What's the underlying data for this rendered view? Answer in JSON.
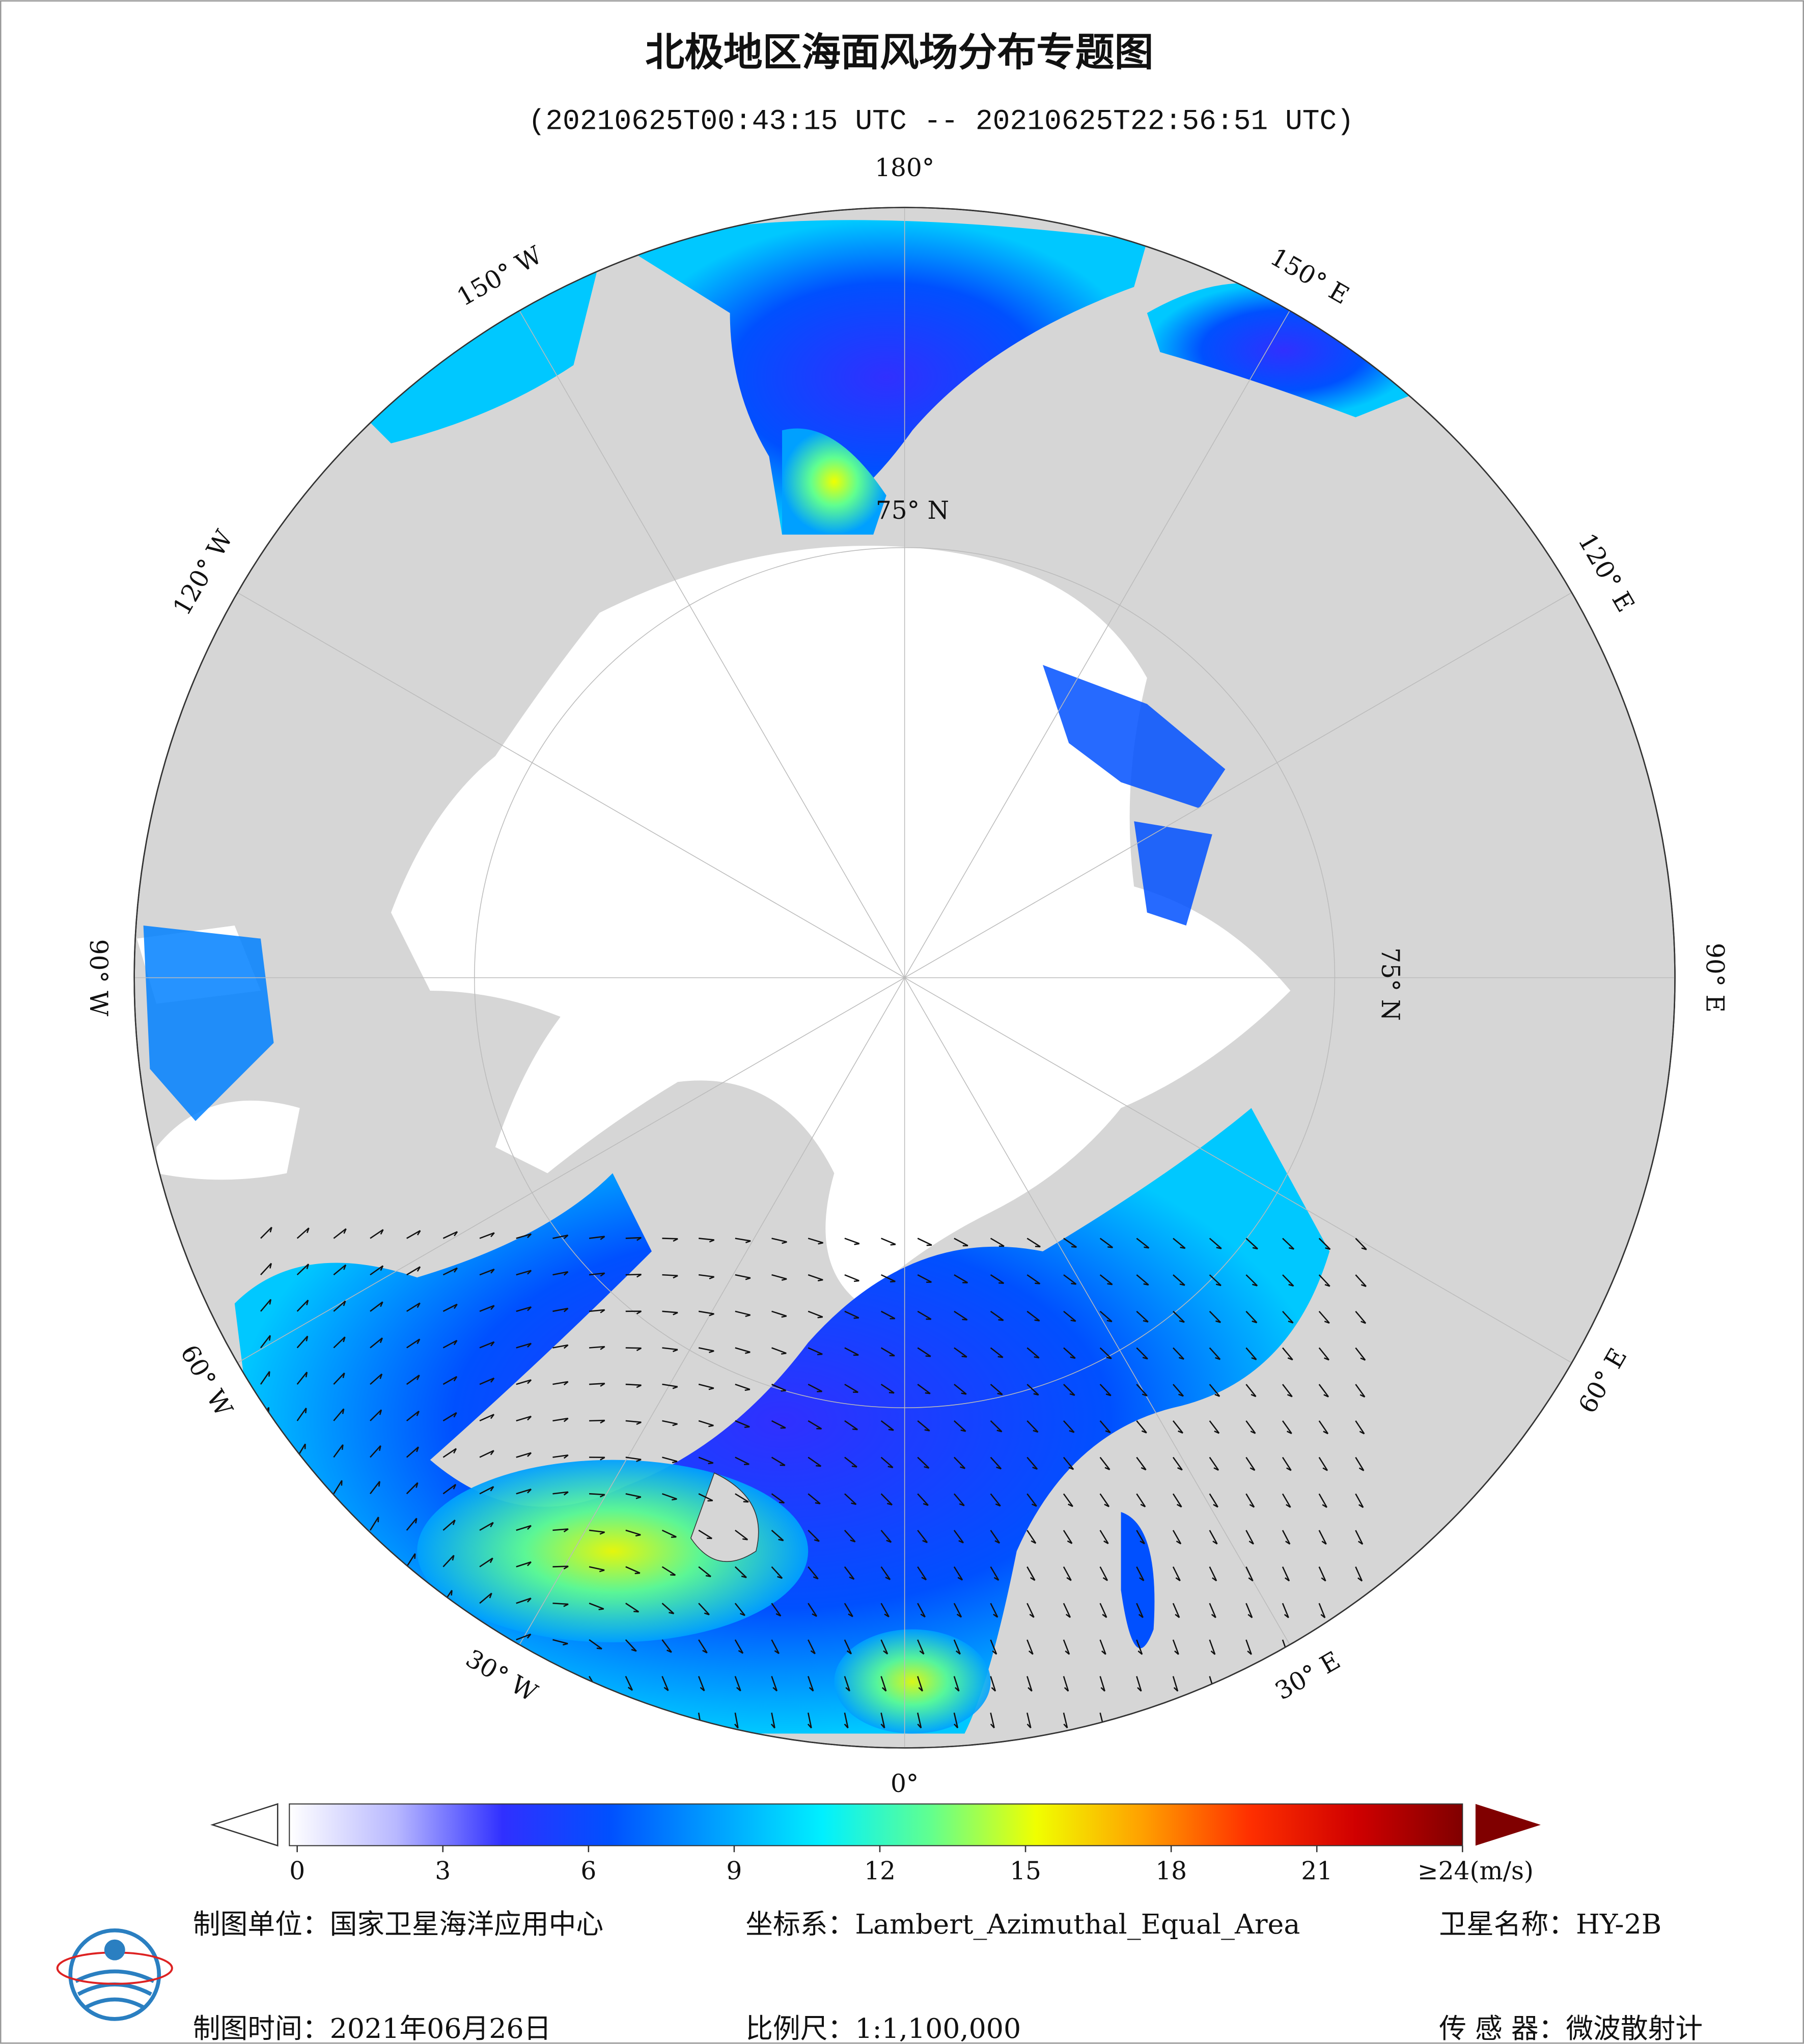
{
  "header": {
    "title": "北极地区海面风场分布专题图",
    "subtitle": "(20210625T00:43:15 UTC -- 20210625T22:56:51 UTC)"
  },
  "map": {
    "longitude_labels": [
      "180°",
      "150° E",
      "120° E",
      "90° E",
      "60° E",
      "30° E",
      "0°",
      "30° W",
      "60° W",
      "90° W",
      "120° W",
      "150° W"
    ],
    "latitude_label": "75° N",
    "land_color": "#d6d6d6",
    "ice_color": "#ffffff"
  },
  "colorbar": {
    "range": [
      0,
      24
    ],
    "ticks": [
      0,
      3,
      6,
      9,
      12,
      15,
      18,
      21,
      {
        "value": 24,
        "label": "≥24(m/s)"
      }
    ],
    "colors": [
      "#ffffff",
      "#b8b8ff",
      "#3030ff",
      "#0050ff",
      "#00a0ff",
      "#00f0ff",
      "#60ff90",
      "#f0ff00",
      "#ffa000",
      "#ff3000",
      "#d00000",
      "#800000"
    ]
  },
  "footer": {
    "unit": "制图单位：国家卫星海洋应用中心",
    "projection": "坐标系：Lambert_Azimuthal_Equal_Area",
    "satellite": "卫星名称：HY-2B",
    "date": "制图时间：2021年06月26日",
    "scale": "比例尺：1:1,100,000",
    "sensor": "传 感 器：微波散射计"
  }
}
